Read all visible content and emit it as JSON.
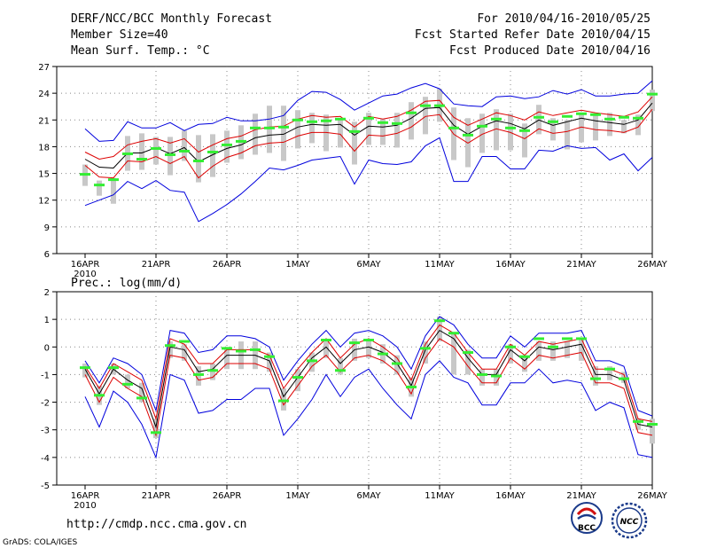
{
  "header": {
    "left_line1": "DERF/NCC/BCC Monthly Forecast",
    "left_line2": "Member Size=40",
    "left_line3": "Mean Surf. Temp.: °C",
    "right_line1": "For 2010/04/16-2010/05/25",
    "right_line2": "Fcst Started Refer Date 2010/04/15",
    "right_line3": "Fcst Produced Date 2010/04/16"
  },
  "footer": {
    "url": "http://cmdp.ncc.cma.gov.cn",
    "grads": "GrADS: COLA/IGES",
    "logo_bcc": "BCC",
    "logo_ncc": "NCC"
  },
  "colors": {
    "ensemble_mean": "#000000",
    "inner_band": "#dd0000",
    "outer_band": "#0000dd",
    "member_box": "#c8c8c8",
    "observed": "#33ee33",
    "grid": "#888888"
  },
  "chart_data": [
    {
      "type": "line",
      "title": "Mean Surf. Temp.: °C",
      "ylim": [
        6,
        27
      ],
      "yticks": [
        "6",
        "9",
        "12",
        "15",
        "18",
        "21",
        "24",
        "27"
      ],
      "xticks": [
        "16APR",
        "21APR",
        "26APR",
        "1MAY",
        "6MAY",
        "11MAY",
        "16MAY",
        "21MAY",
        "26MAY"
      ],
      "xtick_year": "2010",
      "series": [
        {
          "name": "mean",
          "values": [
            16.6,
            15.7,
            15.6,
            17.3,
            17.3,
            17.9,
            17.2,
            17.9,
            16.3,
            17.1,
            17.8,
            18.2,
            19.0,
            19.3,
            19.4,
            20.2,
            20.5,
            20.4,
            20.5,
            19.3,
            20.3,
            20.2,
            20.4,
            21.2,
            22.3,
            22.4,
            20.4,
            19.4,
            20.3,
            20.9,
            20.6,
            20.0,
            21.0,
            20.4,
            20.8,
            21.2,
            20.9,
            20.7,
            20.5,
            21.0,
            22.9
          ]
        },
        {
          "name": "upper_inner",
          "values": [
            17.4,
            16.6,
            16.9,
            18.2,
            18.6,
            18.9,
            18.4,
            18.9,
            17.4,
            18.2,
            18.9,
            19.2,
            19.9,
            20.2,
            20.3,
            21.1,
            21.5,
            21.3,
            21.4,
            20.2,
            21.4,
            21.1,
            21.4,
            22.1,
            23.1,
            23.2,
            21.3,
            20.4,
            21.1,
            21.8,
            21.5,
            21.0,
            21.9,
            21.5,
            21.8,
            22.1,
            21.8,
            21.6,
            21.4,
            21.9,
            23.6
          ]
        },
        {
          "name": "lower_inner",
          "values": [
            15.9,
            14.6,
            14.5,
            16.4,
            16.3,
            16.9,
            16.1,
            16.9,
            14.5,
            15.8,
            16.8,
            17.3,
            18.1,
            18.4,
            18.5,
            19.2,
            19.6,
            19.6,
            19.4,
            17.5,
            19.3,
            19.2,
            19.5,
            20.2,
            21.4,
            21.6,
            19.4,
            18.4,
            19.4,
            20.0,
            19.6,
            18.9,
            20.0,
            19.5,
            19.7,
            20.2,
            19.9,
            19.8,
            19.6,
            20.2,
            22.2
          ]
        },
        {
          "name": "upper_outer",
          "values": [
            20.0,
            18.6,
            18.7,
            20.8,
            20.1,
            20.1,
            20.7,
            19.8,
            20.5,
            20.6,
            21.3,
            20.9,
            20.9,
            21.1,
            21.5,
            23.2,
            24.2,
            24.1,
            23.3,
            22.1,
            22.9,
            23.7,
            23.9,
            24.6,
            25.1,
            24.5,
            22.8,
            22.6,
            22.5,
            23.6,
            23.7,
            23.4,
            23.6,
            24.3,
            23.9,
            24.4,
            23.7,
            23.7,
            23.9,
            24.0,
            25.4
          ]
        },
        {
          "name": "lower_outer",
          "values": [
            11.4,
            12.0,
            12.6,
            14.1,
            13.3,
            14.2,
            13.1,
            12.9,
            9.6,
            10.5,
            11.5,
            12.7,
            14.1,
            15.6,
            15.4,
            15.9,
            16.5,
            16.7,
            16.9,
            13.8,
            16.5,
            16.1,
            16.0,
            16.3,
            18.1,
            19.0,
            14.1,
            14.1,
            16.9,
            16.9,
            15.5,
            15.5,
            17.6,
            17.5,
            18.1,
            17.8,
            17.9,
            16.5,
            17.2,
            15.3,
            16.8
          ]
        },
        {
          "name": "box_top",
          "values": [
            16.0,
            14.2,
            14.5,
            19.2,
            19.5,
            19.1,
            19.1,
            19.8,
            19.3,
            19.4,
            19.8,
            20.4,
            21.7,
            22.6,
            22.6,
            22.1,
            21.8,
            21.6,
            21.1,
            20.8,
            21.8,
            21.1,
            21.8,
            23.0,
            23.6,
            24.5,
            22.4,
            21.2,
            21.7,
            22.2,
            21.7,
            20.6,
            22.7,
            21.2,
            21.0,
            21.8,
            21.7,
            21.8,
            21.0,
            21.6,
            24.4
          ]
        },
        {
          "name": "box_bottom",
          "values": [
            13.6,
            12.5,
            11.6,
            15.3,
            15.4,
            16.0,
            14.8,
            16.4,
            14.0,
            14.6,
            16.2,
            16.6,
            17.1,
            17.3,
            16.4,
            17.8,
            18.4,
            17.5,
            17.9,
            16.0,
            18.2,
            18.2,
            17.9,
            18.8,
            19.4,
            20.8,
            16.5,
            15.7,
            17.3,
            17.6,
            17.6,
            16.8,
            19.4,
            18.7,
            17.7,
            18.5,
            18.7,
            19.2,
            19.5,
            19.3,
            22.0
          ]
        },
        {
          "name": "observed",
          "values": [
            14.9,
            13.7,
            14.3,
            17.2,
            16.6,
            17.8,
            17.1,
            17.5,
            16.4,
            17.4,
            18.2,
            18.6,
            20.1,
            20.1,
            20.2,
            21.0,
            20.8,
            20.9,
            21.1,
            19.7,
            21.2,
            20.7,
            20.6,
            21.8,
            22.6,
            22.6,
            20.1,
            19.3,
            20.3,
            21.1,
            20.1,
            19.8,
            21.3,
            20.8,
            21.4,
            21.7,
            21.6,
            21.1,
            21.3,
            21.2,
            23.9
          ]
        }
      ]
    },
    {
      "type": "line",
      "title": "Prec.: log(mm/d)",
      "ylim": [
        -5,
        2
      ],
      "yticks": [
        "-5",
        "-4",
        "-3",
        "-2",
        "-1",
        "0",
        "1",
        "2"
      ],
      "xticks": [
        "16APR",
        "21APR",
        "26APR",
        "1MAY",
        "6MAY",
        "11MAY",
        "16MAY",
        "21MAY",
        "26MAY"
      ],
      "xtick_year": "2010",
      "series": [
        {
          "name": "mean",
          "values": [
            -0.8,
            -1.7,
            -0.8,
            -1.2,
            -1.5,
            -2.9,
            0.0,
            -0.1,
            -0.9,
            -0.8,
            -0.3,
            -0.3,
            -0.3,
            -0.5,
            -1.8,
            -1.1,
            -0.4,
            0.0,
            -0.6,
            -0.1,
            0.0,
            -0.2,
            -0.6,
            -1.4,
            -0.1,
            0.6,
            0.3,
            -0.4,
            -1.0,
            -1.0,
            -0.1,
            -0.5,
            0.0,
            -0.1,
            0.0,
            0.1,
            -1.0,
            -1.0,
            -1.2,
            -2.8,
            -2.9
          ]
        },
        {
          "name": "upper_inner",
          "values": [
            -0.7,
            -1.5,
            -0.6,
            -0.9,
            -1.2,
            -2.6,
            0.3,
            0.1,
            -0.6,
            -0.6,
            -0.1,
            -0.1,
            -0.1,
            -0.3,
            -1.5,
            -0.8,
            -0.2,
            0.3,
            -0.4,
            0.1,
            0.3,
            0.0,
            -0.4,
            -1.2,
            0.1,
            0.8,
            0.5,
            -0.2,
            -0.8,
            -0.8,
            0.1,
            -0.3,
            0.2,
            0.1,
            0.2,
            0.3,
            -0.8,
            -0.8,
            -1.0,
            -2.6,
            -2.7
          ]
        },
        {
          "name": "lower_inner",
          "values": [
            -1.0,
            -2.0,
            -1.1,
            -1.5,
            -1.8,
            -3.2,
            -0.3,
            -0.4,
            -1.2,
            -1.1,
            -0.6,
            -0.6,
            -0.6,
            -0.8,
            -2.1,
            -1.4,
            -0.7,
            -0.3,
            -0.9,
            -0.4,
            -0.3,
            -0.5,
            -0.9,
            -1.7,
            -0.4,
            0.3,
            0.0,
            -0.7,
            -1.3,
            -1.3,
            -0.4,
            -0.8,
            -0.3,
            -0.4,
            -0.3,
            -0.2,
            -1.3,
            -1.3,
            -1.5,
            -3.1,
            -3.2
          ]
        },
        {
          "name": "upper_outer",
          "values": [
            -0.5,
            -1.3,
            -0.4,
            -0.6,
            -1.0,
            -2.3,
            0.6,
            0.5,
            -0.2,
            -0.1,
            0.4,
            0.4,
            0.3,
            0.0,
            -1.2,
            -0.5,
            0.1,
            0.6,
            0.0,
            0.5,
            0.6,
            0.4,
            0.0,
            -0.8,
            0.4,
            1.1,
            0.8,
            0.1,
            -0.4,
            -0.4,
            0.4,
            0.0,
            0.5,
            0.5,
            0.5,
            0.6,
            -0.5,
            -0.5,
            -0.7,
            -2.3,
            -2.5
          ]
        },
        {
          "name": "lower_outer",
          "values": [
            -1.8,
            -2.9,
            -1.6,
            -2.0,
            -2.8,
            -4.0,
            -1.0,
            -1.2,
            -2.4,
            -2.3,
            -1.9,
            -1.9,
            -1.5,
            -1.5,
            -3.2,
            -2.6,
            -1.9,
            -1.0,
            -1.8,
            -1.1,
            -0.8,
            -1.5,
            -2.1,
            -2.6,
            -1.0,
            -0.5,
            -1.1,
            -1.3,
            -2.1,
            -2.1,
            -1.3,
            -1.3,
            -0.8,
            -1.3,
            -1.2,
            -1.3,
            -2.3,
            -2.0,
            -2.2,
            -3.9,
            -4.0
          ]
        },
        {
          "name": "box_top",
          "values": [
            -0.6,
            -1.4,
            -0.6,
            -1.0,
            -1.3,
            -2.6,
            0.2,
            0.1,
            -0.7,
            -0.6,
            0.0,
            0.2,
            0.2,
            -0.2,
            -1.5,
            -0.8,
            -0.2,
            0.2,
            -0.4,
            0.3,
            0.3,
            0.1,
            -0.3,
            -1.1,
            0.2,
            1.1,
            0.5,
            -0.1,
            -0.8,
            -0.8,
            0.1,
            -0.3,
            0.2,
            0.2,
            0.2,
            0.3,
            -0.7,
            -0.7,
            -0.9,
            -2.6,
            -2.6
          ]
        },
        {
          "name": "box_bottom",
          "values": [
            -1.1,
            -2.1,
            -1.0,
            -1.5,
            -2.0,
            -3.3,
            -0.4,
            -0.5,
            -1.4,
            -1.2,
            -0.8,
            -0.8,
            -0.8,
            -0.9,
            -2.3,
            -1.6,
            -0.9,
            -0.4,
            -1.0,
            -0.5,
            -0.4,
            -0.6,
            -1.0,
            -1.8,
            -0.6,
            0.2,
            -1.0,
            -1.0,
            -1.4,
            -1.4,
            -0.6,
            -0.9,
            -0.5,
            -0.5,
            -0.4,
            -0.5,
            -1.4,
            -1.2,
            -1.3,
            -3.0,
            -3.5
          ]
        },
        {
          "name": "observed",
          "values": [
            -0.75,
            -1.75,
            -0.75,
            -1.35,
            -1.85,
            -3.1,
            0.05,
            0.2,
            -1.0,
            -0.85,
            -0.05,
            -0.15,
            -0.1,
            -0.35,
            -1.95,
            -1.1,
            -0.5,
            0.25,
            -0.85,
            0.15,
            0.25,
            -0.25,
            -0.6,
            -1.45,
            -0.05,
            0.95,
            0.5,
            -0.2,
            -1.0,
            -1.05,
            0.0,
            -0.35,
            0.3,
            0.0,
            0.3,
            0.3,
            -1.15,
            -0.8,
            -1.15,
            -2.7,
            -2.8
          ]
        }
      ]
    }
  ]
}
